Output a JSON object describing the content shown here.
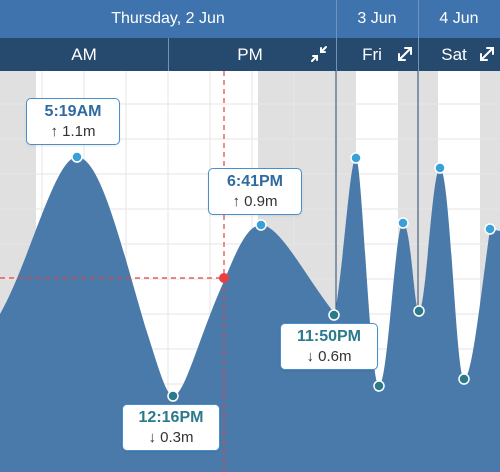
{
  "header": {
    "day_title": "Thursday, 2 Jun",
    "next_day_1": "3 Jun",
    "next_day_2": "4 Jun",
    "am_label": "AM",
    "pm_label": "PM",
    "fri_label": "Fri",
    "sat_label": "Sat"
  },
  "icons": {
    "pm_icon": "collapse-arrows-icon",
    "fri_icon": "expand-arrows-icon",
    "sat_icon": "expand-arrows-icon"
  },
  "tides": [
    {
      "type": "high",
      "time": "5:19AM",
      "height": "1.1m",
      "arrow": "↑"
    },
    {
      "type": "low",
      "time": "12:16PM",
      "height": "0.3m",
      "arrow": "↓"
    },
    {
      "type": "high",
      "time": "6:41PM",
      "height": "0.9m",
      "arrow": "↑"
    },
    {
      "type": "low",
      "time": "11:50PM",
      "height": "0.6m",
      "arrow": "↓"
    }
  ],
  "colors": {
    "header_top": "#3e73ad",
    "header_sub": "#264a6e",
    "tide_fill": "#4a7aaa",
    "night_shade": "#e0e0e0",
    "cursor": "#e84040",
    "accent_text": "#2f6aa0"
  }
}
